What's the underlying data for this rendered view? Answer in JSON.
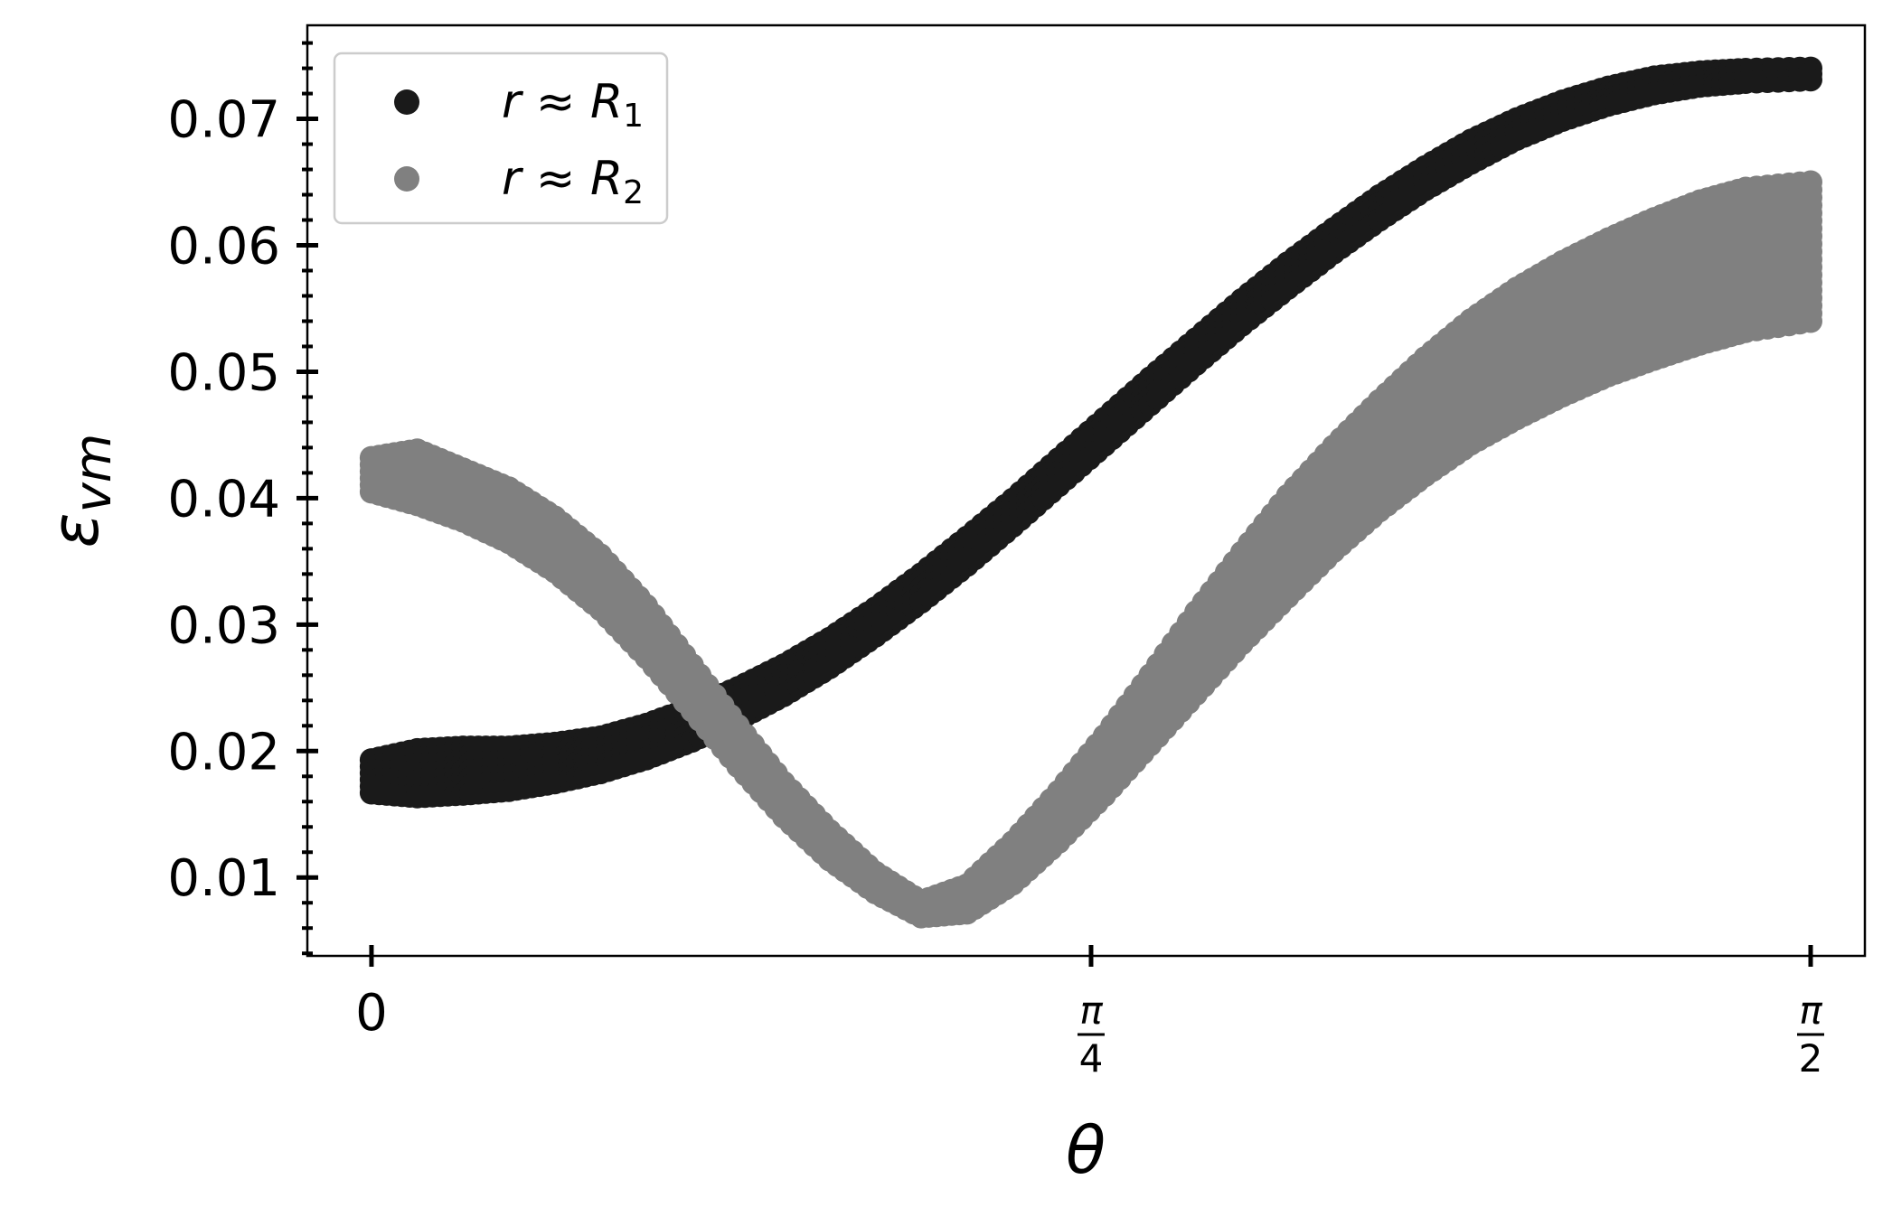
{
  "chart_data": {
    "type": "scatter",
    "xlabel": "θ",
    "ylabel": "ε",
    "ylabel_sub": "vm",
    "xlim": [
      -0.07,
      1.63
    ],
    "ylim": [
      0.0038,
      0.0774
    ],
    "x_ticks": [
      {
        "value": 0,
        "label": "0"
      },
      {
        "value": 0.7854,
        "num": "π",
        "den": "4"
      },
      {
        "value": 1.5708,
        "num": "π",
        "den": "2"
      }
    ],
    "y_ticks": [
      {
        "value": 0.01,
        "label": "0.01"
      },
      {
        "value": 0.02,
        "label": "0.02"
      },
      {
        "value": 0.03,
        "label": "0.03"
      },
      {
        "value": 0.04,
        "label": "0.04"
      },
      {
        "value": 0.05,
        "label": "0.05"
      },
      {
        "value": 0.06,
        "label": "0.06"
      },
      {
        "value": 0.07,
        "label": "0.07"
      }
    ],
    "grid": false,
    "legend_position": "top-left",
    "series": [
      {
        "name": "r ≈ R",
        "name_sub": "1",
        "color": "#1a1a1a",
        "x": [
          0.0,
          0.05,
          0.1,
          0.15,
          0.2,
          0.25,
          0.3,
          0.35,
          0.4,
          0.45,
          0.5,
          0.55,
          0.6,
          0.65,
          0.7,
          0.75,
          0.8,
          0.85,
          0.9,
          0.95,
          1.0,
          1.05,
          1.1,
          1.15,
          1.2,
          1.25,
          1.3,
          1.35,
          1.4,
          1.45,
          1.5,
          1.5708
        ],
        "y_low": [
          0.0167,
          0.0164,
          0.0166,
          0.0169,
          0.0175,
          0.0183,
          0.0194,
          0.0208,
          0.0225,
          0.0244,
          0.0266,
          0.0291,
          0.0318,
          0.0347,
          0.0378,
          0.041,
          0.0442,
          0.0474,
          0.0506,
          0.0537,
          0.0566,
          0.0594,
          0.062,
          0.0644,
          0.0665,
          0.0684,
          0.0699,
          0.0711,
          0.072,
          0.0726,
          0.0729,
          0.0731
        ],
        "y_high": [
          0.0193,
          0.0201,
          0.0203,
          0.0203,
          0.0206,
          0.0211,
          0.0221,
          0.0234,
          0.025,
          0.0268,
          0.0289,
          0.0313,
          0.034,
          0.0369,
          0.0399,
          0.0431,
          0.0463,
          0.0495,
          0.0526,
          0.0557,
          0.0586,
          0.0613,
          0.0639,
          0.0662,
          0.0683,
          0.07,
          0.0714,
          0.0725,
          0.0733,
          0.0737,
          0.0739,
          0.074
        ]
      },
      {
        "name": "r ≈ R",
        "name_sub": "2",
        "color": "#808080",
        "x": [
          0.0,
          0.05,
          0.1,
          0.15,
          0.2,
          0.25,
          0.3,
          0.35,
          0.4,
          0.45,
          0.5,
          0.55,
          0.6,
          0.65,
          0.7,
          0.75,
          0.8,
          0.85,
          0.9,
          0.95,
          1.0,
          1.05,
          1.1,
          1.15,
          1.2,
          1.25,
          1.3,
          1.35,
          1.4,
          1.45,
          1.5,
          1.5708
        ],
        "y_low": [
          0.0405,
          0.0395,
          0.0382,
          0.0365,
          0.0342,
          0.0312,
          0.0274,
          0.0232,
          0.0188,
          0.0148,
          0.0114,
          0.0088,
          0.0069,
          0.0072,
          0.0095,
          0.0128,
          0.0165,
          0.0205,
          0.0245,
          0.0285,
          0.0322,
          0.0358,
          0.039,
          0.0418,
          0.0443,
          0.0463,
          0.0481,
          0.0497,
          0.051,
          0.0522,
          0.0532,
          0.054
        ],
        "y_high": [
          0.0432,
          0.0438,
          0.0423,
          0.0408,
          0.0385,
          0.0355,
          0.0315,
          0.0268,
          0.022,
          0.0175,
          0.0137,
          0.0104,
          0.0081,
          0.0094,
          0.0128,
          0.0168,
          0.0212,
          0.026,
          0.031,
          0.0357,
          0.0402,
          0.0441,
          0.0477,
          0.0511,
          0.0541,
          0.0566,
          0.0587,
          0.0605,
          0.0621,
          0.0635,
          0.0645,
          0.065
        ]
      }
    ]
  }
}
